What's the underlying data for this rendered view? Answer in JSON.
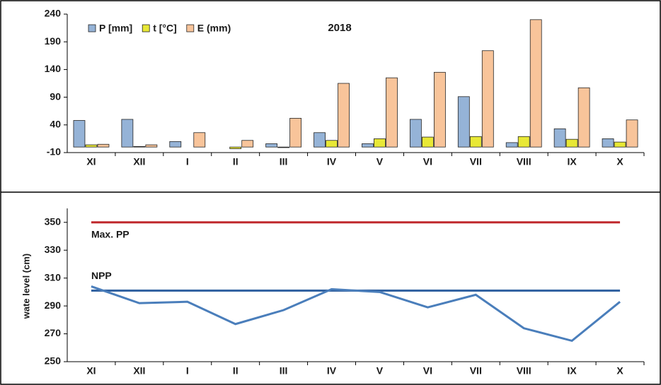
{
  "chart_data": [
    {
      "type": "bar",
      "annotation": "2018",
      "categories": [
        "XI",
        "XII",
        "I",
        "II",
        "III",
        "IV",
        "V",
        "VI",
        "VII",
        "VIII",
        "IX",
        "X"
      ],
      "series": [
        {
          "name": "P [mm]",
          "color": "#95b3d7",
          "values": [
            48,
            50,
            10,
            0,
            6,
            26,
            6,
            50,
            91,
            8,
            33,
            15
          ]
        },
        {
          "name": "t [°C]",
          "color": "#e8e836",
          "values": [
            4,
            1,
            0,
            -3,
            -1,
            12,
            15,
            18,
            19,
            19,
            14,
            9
          ]
        },
        {
          "name": "E (mm)",
          "color": "#f8c49a",
          "values": [
            5,
            4,
            26,
            12,
            52,
            115,
            125,
            135,
            174,
            230,
            107,
            49
          ]
        }
      ],
      "ylim": [
        -10,
        240
      ],
      "yticks": [
        -10,
        40,
        90,
        140,
        190,
        240
      ],
      "legend": "top-left"
    },
    {
      "type": "line",
      "y_label": "wate level (cm)",
      "categories": [
        "XI",
        "XII",
        "I",
        "II",
        "III",
        "IV",
        "V",
        "VI",
        "VII",
        "VIII",
        "IX",
        "X"
      ],
      "series": [
        {
          "color": "#4a7ebb",
          "values": [
            304,
            292,
            293,
            277,
            287,
            302,
            300,
            289,
            298,
            274,
            265,
            293
          ]
        }
      ],
      "reference_lines": [
        {
          "label": "Max. PP",
          "value": 350,
          "color": "#c0282d"
        },
        {
          "label": "NPP",
          "value": 301,
          "color": "#2e5f9f"
        }
      ],
      "ylim": [
        250,
        360
      ],
      "yticks": [
        250,
        270,
        290,
        310,
        330,
        350
      ]
    }
  ]
}
